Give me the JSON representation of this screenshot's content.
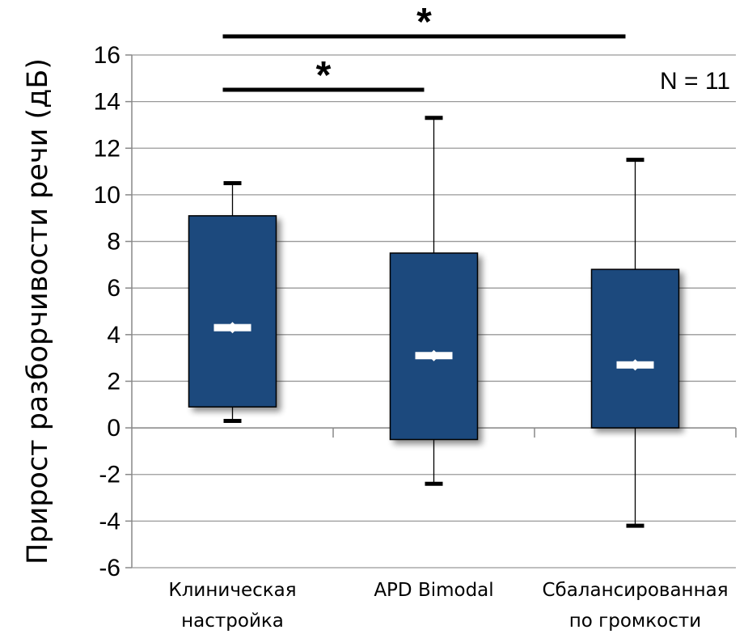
{
  "chart_data": {
    "type": "box",
    "ylabel": "Прирост разборчивости речи (дБ)",
    "ylim": [
      -6,
      16
    ],
    "yticks": [
      -6,
      -4,
      -2,
      0,
      2,
      4,
      6,
      8,
      10,
      12,
      14,
      16
    ],
    "grid": true,
    "annotation": "N = 11",
    "categories": [
      [
        "Клиническая",
        "настройка"
      ],
      [
        "APD Bimodal"
      ],
      [
        "Сбалансированная",
        "по громкости"
      ]
    ],
    "boxes": [
      {
        "whisker_low": 0.3,
        "q1": 0.9,
        "median": 4.3,
        "q3": 9.1,
        "whisker_high": 10.5
      },
      {
        "whisker_low": -2.4,
        "q1": -0.5,
        "median": 3.1,
        "q3": 7.5,
        "whisker_high": 13.3
      },
      {
        "whisker_low": -4.2,
        "q1": 0.0,
        "median": 2.7,
        "q3": 6.8,
        "whisker_high": 11.5
      }
    ],
    "significance": [
      {
        "from": 0,
        "to": 1,
        "label": "*"
      },
      {
        "from": 0,
        "to": 2,
        "label": "*"
      }
    ],
    "colors": {
      "box": "#1f497d",
      "median": "#ffffff",
      "grid": "#999999"
    }
  }
}
